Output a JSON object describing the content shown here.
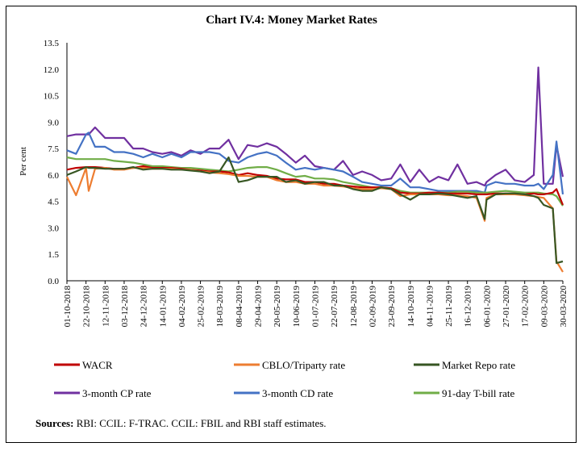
{
  "chart_data": {
    "type": "line",
    "title": "Chart IV.4: Money Market Rates",
    "ylabel": "Per cent",
    "xlabel": "",
    "ylim": [
      0,
      13.5
    ],
    "yticks": [
      "0.0",
      "1.5",
      "3.0",
      "4.5",
      "6.0",
      "7.5",
      "9.0",
      "10.5",
      "12.0",
      "13.5"
    ],
    "xticks": [
      "01-10-2018",
      "22-10-2018",
      "12-11-2018",
      "03-12-2018",
      "24-12-2018",
      "14-01-2019",
      "04-02-2019",
      "25-02-2019",
      "18-03-2019",
      "08-04-2019",
      "29-04-2019",
      "20-05-2019",
      "10-06-2019",
      "01-07-2019",
      "22-07-2019",
      "12-08-2019",
      "02-09-2019",
      "23-09-2019",
      "14-10-2019",
      "04-11-2019",
      "25-11-2019",
      "16-12-2019",
      "06-01-2020",
      "27-01-2020",
      "17-02-2020",
      "09-03-2020",
      "30-03-2020"
    ],
    "grid": false,
    "legend_position": "bottom",
    "x": [
      "01-10-2018",
      "11-10-2018",
      "22-10-2018",
      "25-10-2018",
      "01-11-2018",
      "12-11-2018",
      "22-11-2018",
      "03-12-2018",
      "13-12-2018",
      "24-12-2018",
      "03-01-2019",
      "14-01-2019",
      "24-01-2019",
      "04-02-2019",
      "14-02-2019",
      "25-02-2019",
      "07-03-2019",
      "18-03-2019",
      "28-03-2019",
      "08-04-2019",
      "18-04-2019",
      "29-04-2019",
      "09-05-2019",
      "20-05-2019",
      "30-05-2019",
      "10-06-2019",
      "20-06-2019",
      "01-07-2019",
      "11-07-2019",
      "22-07-2019",
      "01-08-2019",
      "12-08-2019",
      "22-08-2019",
      "02-09-2019",
      "12-09-2019",
      "23-09-2019",
      "03-10-2019",
      "14-10-2019",
      "24-10-2019",
      "04-11-2019",
      "14-11-2019",
      "25-11-2019",
      "05-12-2019",
      "16-12-2019",
      "26-12-2019",
      "04-01-2020",
      "06-01-2020",
      "16-01-2020",
      "27-01-2020",
      "06-02-2020",
      "17-02-2020",
      "27-02-2020",
      "03-03-2020",
      "09-03-2020",
      "19-03-2020",
      "23-03-2020",
      "30-03-2020"
    ],
    "series": [
      {
        "name": "3-month CP rate",
        "color": "#7030a0",
        "values": [
          8.2,
          8.3,
          8.3,
          8.3,
          8.7,
          8.1,
          8.1,
          8.1,
          7.5,
          7.5,
          7.3,
          7.2,
          7.3,
          7.1,
          7.4,
          7.2,
          7.5,
          7.5,
          8.0,
          6.9,
          7.7,
          7.6,
          7.8,
          7.6,
          7.2,
          6.7,
          7.1,
          6.5,
          6.4,
          6.3,
          6.8,
          6.0,
          6.2,
          6.0,
          5.7,
          5.8,
          6.6,
          5.6,
          6.3,
          5.6,
          5.9,
          5.7,
          6.6,
          5.5,
          5.6,
          5.4,
          5.6,
          6.0,
          6.3,
          5.7,
          5.6,
          6.0,
          12.1,
          5.5,
          5.5,
          7.7,
          5.9
        ]
      },
      {
        "name": "3-month CD rate",
        "color": "#4472c4",
        "values": [
          7.4,
          7.2,
          8.3,
          8.4,
          7.6,
          7.6,
          7.3,
          7.3,
          7.2,
          7.0,
          7.2,
          7.0,
          7.2,
          7.0,
          7.3,
          7.3,
          7.3,
          7.2,
          6.8,
          6.7,
          7.0,
          7.2,
          7.3,
          7.1,
          6.7,
          6.3,
          6.4,
          6.3,
          6.4,
          6.3,
          6.2,
          5.9,
          5.6,
          5.5,
          5.4,
          5.4,
          5.8,
          5.3,
          5.3,
          5.2,
          5.1,
          5.1,
          5.1,
          5.1,
          5.1,
          5.0,
          5.4,
          5.6,
          5.5,
          5.5,
          5.4,
          5.4,
          5.5,
          5.2,
          6.0,
          7.9,
          4.9
        ]
      },
      {
        "name": "91-day  T-bill rate",
        "color": "#70ad47",
        "values": [
          7.0,
          6.9,
          6.9,
          6.9,
          6.9,
          6.9,
          6.8,
          6.75,
          6.7,
          6.6,
          6.5,
          6.5,
          6.45,
          6.4,
          6.4,
          6.35,
          6.3,
          6.25,
          6.2,
          6.3,
          6.4,
          6.45,
          6.45,
          6.3,
          6.1,
          5.9,
          5.95,
          5.8,
          5.8,
          5.75,
          5.6,
          5.5,
          5.4,
          5.3,
          5.3,
          5.25,
          5.1,
          5.0,
          5.0,
          5.0,
          5.0,
          5.0,
          5.05,
          5.05,
          5.0,
          5.0,
          5.0,
          5.05,
          5.1,
          5.05,
          5.0,
          5.0,
          5.0,
          4.95,
          4.9,
          4.8,
          4.25
        ]
      },
      {
        "name": "WACR",
        "color": "#c00000",
        "values": [
          6.3,
          6.4,
          6.45,
          6.45,
          6.45,
          6.4,
          6.35,
          6.35,
          6.4,
          6.5,
          6.4,
          6.4,
          6.4,
          6.35,
          6.3,
          6.25,
          6.2,
          6.2,
          6.15,
          6.0,
          6.1,
          6.0,
          5.95,
          5.8,
          5.75,
          5.75,
          5.6,
          5.6,
          5.5,
          5.5,
          5.4,
          5.35,
          5.3,
          5.3,
          5.3,
          5.25,
          5.0,
          4.95,
          4.95,
          5.0,
          5.0,
          4.95,
          4.95,
          4.95,
          4.9,
          4.9,
          4.9,
          4.95,
          4.95,
          4.95,
          4.9,
          4.95,
          4.9,
          4.9,
          5.0,
          5.2,
          4.3
        ]
      },
      {
        "name": "CBLO/Triparty rate",
        "color": "#ed7d31",
        "values": [
          5.9,
          4.85,
          6.4,
          5.1,
          6.35,
          6.4,
          6.3,
          6.3,
          6.4,
          6.4,
          6.35,
          6.35,
          6.35,
          6.3,
          6.3,
          6.2,
          6.15,
          6.1,
          6.05,
          5.95,
          5.95,
          5.9,
          5.9,
          5.7,
          5.6,
          5.6,
          5.5,
          5.5,
          5.4,
          5.4,
          5.35,
          5.25,
          5.2,
          5.2,
          5.25,
          5.2,
          4.8,
          4.9,
          4.9,
          4.9,
          4.9,
          4.85,
          4.85,
          4.8,
          4.7,
          3.4,
          4.7,
          4.9,
          4.9,
          4.9,
          4.85,
          4.8,
          4.75,
          4.7,
          4.1,
          1.1,
          0.5
        ]
      },
      {
        "name": "Market Repo rate",
        "color": "#375623",
        "values": [
          6.0,
          6.2,
          6.45,
          6.4,
          6.4,
          6.35,
          6.35,
          6.35,
          6.45,
          6.3,
          6.35,
          6.35,
          6.3,
          6.3,
          6.25,
          6.2,
          6.1,
          6.2,
          7.0,
          5.6,
          5.7,
          5.9,
          5.9,
          5.9,
          5.6,
          5.7,
          5.5,
          5.6,
          5.6,
          5.4,
          5.4,
          5.2,
          5.1,
          5.1,
          5.3,
          5.2,
          4.9,
          4.6,
          4.9,
          4.9,
          4.95,
          4.9,
          4.8,
          4.7,
          4.8,
          3.5,
          4.6,
          4.9,
          4.95,
          4.95,
          4.9,
          4.8,
          4.7,
          4.3,
          4.1,
          1.0,
          1.1
        ]
      }
    ],
    "legend": [
      {
        "name": "WACR",
        "color": "#c00000"
      },
      {
        "name": "CBLO/Triparty rate",
        "color": "#ed7d31"
      },
      {
        "name": "Market Repo rate",
        "color": "#375623"
      },
      {
        "name": "3-month CP rate",
        "color": "#7030a0"
      },
      {
        "name": "3-month CD rate",
        "color": "#4472c4"
      },
      {
        "name": "91-day  T-bill rate",
        "color": "#70ad47"
      }
    ]
  },
  "footer": {
    "sources_label": "Sources:",
    "sources_text": " RBI: CCIL: F-TRAC. CCIL: FBIL and RBI staff estimates."
  }
}
